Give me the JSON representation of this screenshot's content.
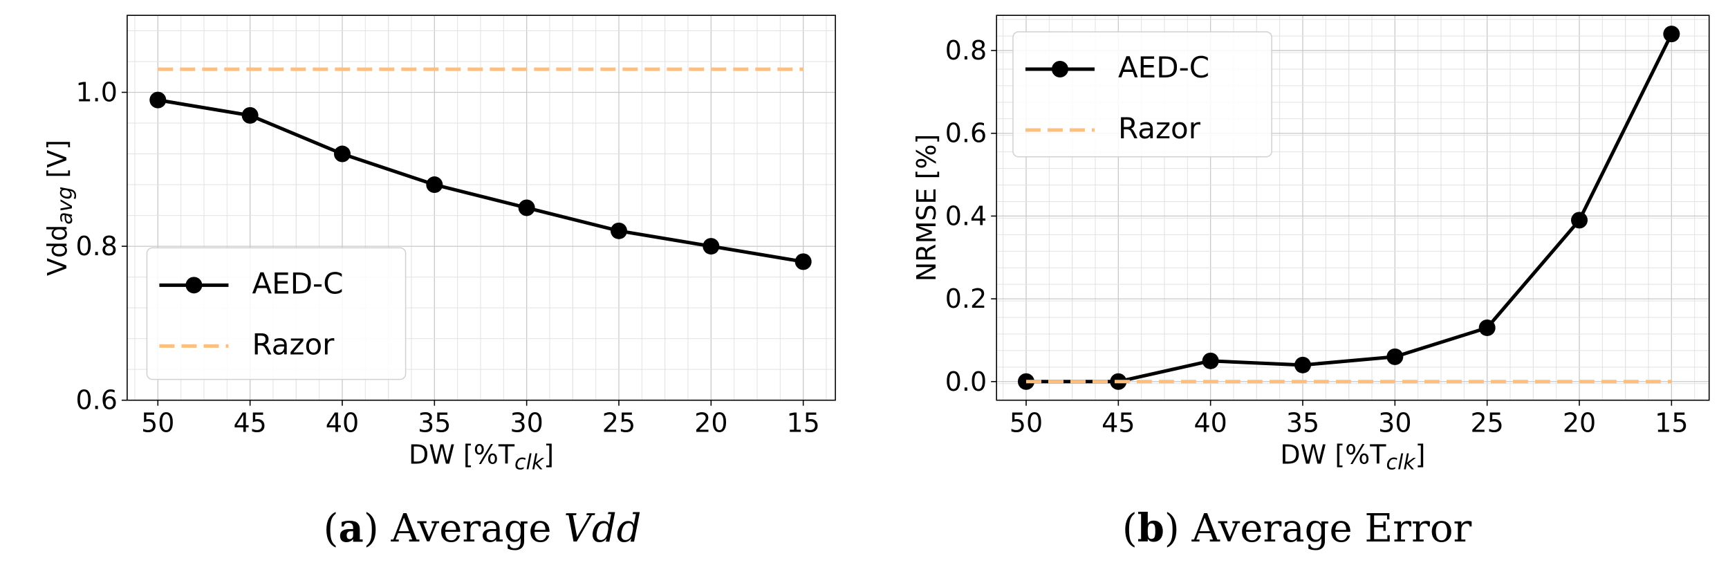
{
  "chart_data": [
    {
      "type": "line",
      "ylabel": "Vdd",
      "ylabel_sub": "avg",
      "ylabel_unit": "[V]",
      "xlabel": "DW [%T",
      "xlabel_sub": "clk",
      "xlabel_end": "]",
      "categories": [
        "50",
        "45",
        "40",
        "35",
        "30",
        "25",
        "20",
        "15"
      ],
      "ylim": [
        0.6,
        1.1
      ],
      "yticks": [
        0.6,
        0.8,
        1.0
      ],
      "ytick_labels": [
        "0.6",
        "0.8",
        "1.0"
      ],
      "grid": true,
      "legend": "lower-left",
      "series": [
        {
          "name": "AED-C",
          "style": "solid-marker",
          "color": "#000000",
          "values": [
            0.99,
            0.97,
            0.92,
            0.88,
            0.85,
            0.82,
            0.8,
            0.78
          ]
        },
        {
          "name": "Razor",
          "style": "dashed",
          "color": "#fdbf7f",
          "values": [
            1.03,
            1.03,
            1.03,
            1.03,
            1.03,
            1.03,
            1.03,
            1.03
          ]
        }
      ],
      "caption": {
        "letter": "a",
        "text": "Average",
        "math": "Vdd"
      }
    },
    {
      "type": "line",
      "ylabel": "NRMSE [%]",
      "xlabel": "DW [%T",
      "xlabel_sub": "clk",
      "xlabel_end": "]",
      "categories": [
        "50",
        "45",
        "40",
        "35",
        "30",
        "25",
        "20",
        "15"
      ],
      "ylim": [
        -0.045,
        0.885
      ],
      "yticks": [
        0.0,
        0.2,
        0.4,
        0.6,
        0.8
      ],
      "ytick_labels": [
        "0.0",
        "0.2",
        "0.4",
        "0.6",
        "0.8"
      ],
      "grid": true,
      "legend": "top-left",
      "series": [
        {
          "name": "AED-C",
          "style": "solid-marker",
          "color": "#000000",
          "values": [
            0.0,
            0.0,
            0.05,
            0.04,
            0.06,
            0.13,
            0.39,
            0.84
          ]
        },
        {
          "name": "Razor",
          "style": "dashed",
          "color": "#fdbf7f",
          "values": [
            0.0,
            0.0,
            0.0,
            0.0,
            0.0,
            0.0,
            0.0,
            0.0
          ]
        }
      ],
      "caption": {
        "letter": "b",
        "text": "Average Error"
      }
    }
  ]
}
